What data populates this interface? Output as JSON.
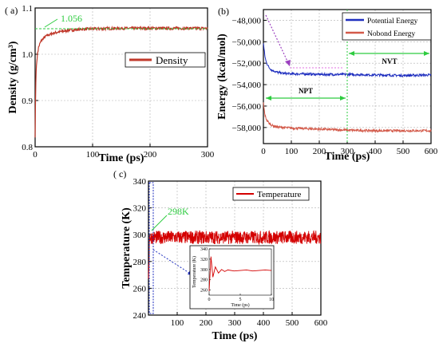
{
  "colors": {
    "density": "#c0392b",
    "potential": "#1f2fbf",
    "nonbond": "#d35a4a",
    "temperature": "#d40000",
    "annotation_green": "#2ecc40",
    "blue_dash": "#1f2fbf",
    "purple_dash": "#9b3fbf",
    "pink_dash": "#e070e0"
  },
  "panels": {
    "a": {
      "label": "( a)",
      "annotation": "1.056"
    },
    "b": {
      "label": "(b)",
      "npt_label": "NPT",
      "nvt_label": "NVT"
    },
    "c": {
      "label": "( c)",
      "annotation": "298K"
    }
  },
  "chart_data": [
    {
      "id": "a",
      "type": "line",
      "xlabel": "Time (ps)",
      "ylabel": "Density (g/cm³)",
      "xlim": [
        0,
        300
      ],
      "ylim": [
        0.8,
        1.1
      ],
      "xticks": [
        0,
        100,
        200,
        300
      ],
      "yticks": [
        0.8,
        0.9,
        1.0,
        1.1
      ],
      "ytick_labels": [
        "0.8",
        "0.9",
        "1.0",
        "1.1"
      ],
      "series": [
        {
          "name": "Density",
          "x": [
            0,
            1,
            2,
            4,
            6,
            10,
            15,
            20,
            30,
            40,
            60,
            80,
            100,
            150,
            200,
            250,
            300
          ],
          "y": [
            0.82,
            0.93,
            0.97,
            1.0,
            1.015,
            1.028,
            1.035,
            1.04,
            1.045,
            1.048,
            1.052,
            1.054,
            1.055,
            1.056,
            1.056,
            1.056,
            1.056
          ]
        }
      ],
      "reference_value": 1.056,
      "legend": "right"
    },
    {
      "id": "b",
      "type": "line",
      "xlabel": "Time (ps)",
      "ylabel": "Energy (kcal/mol)",
      "xlim": [
        0,
        600
      ],
      "ylim": [
        -59500,
        -47000
      ],
      "xticks": [
        0,
        100,
        200,
        300,
        400,
        500,
        600
      ],
      "yticks": [
        -58000,
        -56000,
        -54000,
        -52000,
        -50000,
        -48000
      ],
      "ytick_labels": [
        "−58,000",
        "−56,000",
        "−54,000",
        "−52,000",
        "−50,000",
        "−48,000"
      ],
      "series": [
        {
          "name": "Potential Energy",
          "x": [
            0,
            5,
            10,
            20,
            30,
            50,
            70,
            100,
            150,
            200,
            300,
            400,
            500,
            600
          ],
          "y": [
            -50100,
            -51300,
            -51900,
            -52400,
            -52650,
            -52850,
            -52950,
            -53000,
            -53000,
            -53050,
            -53050,
            -53100,
            -53150,
            -53100
          ]
        },
        {
          "name": "Nobond Energy",
          "x": [
            0,
            5,
            10,
            20,
            30,
            50,
            70,
            100,
            150,
            200,
            300,
            400,
            500,
            600
          ],
          "y": [
            -55700,
            -56800,
            -57200,
            -57600,
            -57800,
            -57950,
            -58000,
            -58050,
            -58100,
            -58150,
            -58250,
            -58300,
            -58300,
            -58300
          ]
        }
      ],
      "phase_boundary_x": 300,
      "legend": "top-right"
    },
    {
      "id": "c",
      "type": "line",
      "xlabel": "Time (ps)",
      "ylabel": "Temperature (K)",
      "xlim": [
        0,
        600
      ],
      "ylim": [
        240,
        340
      ],
      "xticks": [
        100,
        200,
        300,
        400,
        500,
        600
      ],
      "yticks": [
        240,
        260,
        280,
        300,
        320,
        340
      ],
      "series": [
        {
          "name": "Temperature",
          "mean": 298,
          "amplitude": 5
        }
      ],
      "legend": "top-right",
      "inset": {
        "xlabel": "Time (ps)",
        "ylabel": "Temperature (K)",
        "xlim": [
          0,
          10
        ],
        "ylim": [
          250,
          340
        ],
        "xticks": [
          0,
          5,
          10
        ],
        "yticks": [
          260,
          280,
          300,
          320,
          340
        ],
        "x": [
          0,
          0.3,
          0.6,
          1.0,
          1.5,
          2,
          2.5,
          3,
          4,
          5,
          6,
          7,
          8,
          9,
          10
        ],
        "y": [
          258,
          325,
          285,
          305,
          293,
          300,
          296,
          299,
          297,
          298,
          299,
          297,
          298,
          299,
          298
        ]
      }
    }
  ]
}
